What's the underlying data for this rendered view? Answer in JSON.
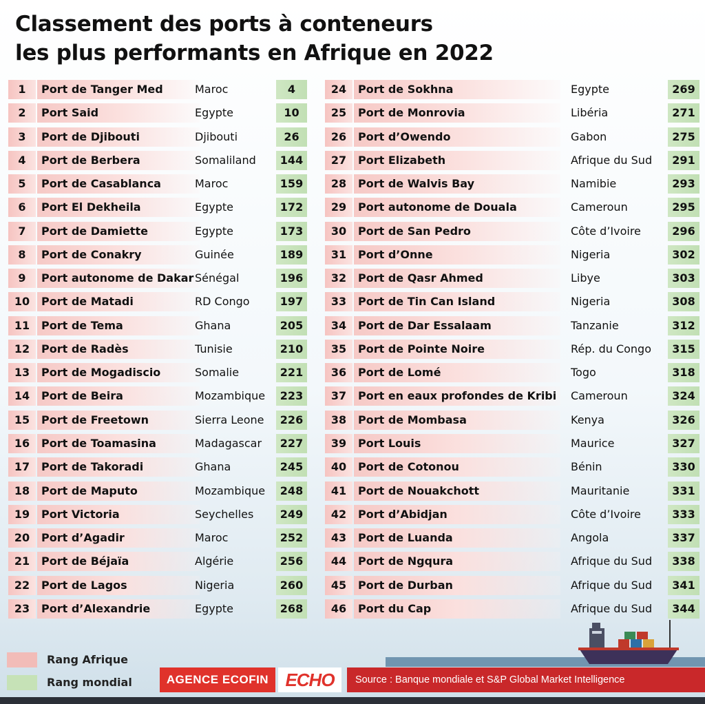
{
  "title": {
    "line1": "Classement des ports à conteneurs",
    "line2": "les plus performants en Afrique en 2022"
  },
  "ports": [
    {
      "rank": "1",
      "name": "Port de Tanger Med",
      "country": "Maroc",
      "world": "4"
    },
    {
      "rank": "2",
      "name": "Port Said",
      "country": "Egypte",
      "world": "10"
    },
    {
      "rank": "3",
      "name": "Port de Djibouti",
      "country": "Djibouti",
      "world": "26"
    },
    {
      "rank": "4",
      "name": "Port de Berbera",
      "country": "Somaliland",
      "world": "144"
    },
    {
      "rank": "5",
      "name": "Port de Casablanca",
      "country": "Maroc",
      "world": "159"
    },
    {
      "rank": "6",
      "name": "Port El Dekheila",
      "country": "Egypte",
      "world": "172"
    },
    {
      "rank": "7",
      "name": "Port de Damiette",
      "country": "Egypte",
      "world": "173"
    },
    {
      "rank": "8",
      "name": "Port de Conakry",
      "country": "Guinée",
      "world": "189"
    },
    {
      "rank": "9",
      "name": "Port autonome de Dakar",
      "country": "Sénégal",
      "world": "196"
    },
    {
      "rank": "10",
      "name": "Port de Matadi",
      "country": "RD Congo",
      "world": "197"
    },
    {
      "rank": "11",
      "name": "Port de Tema",
      "country": "Ghana",
      "world": "205"
    },
    {
      "rank": "12",
      "name": "Port de Radès",
      "country": "Tunisie",
      "world": "210"
    },
    {
      "rank": "13",
      "name": "Port de Mogadiscio",
      "country": "Somalie",
      "world": "221"
    },
    {
      "rank": "14",
      "name": "Port de Beira",
      "country": "Mozambique",
      "world": "223"
    },
    {
      "rank": "15",
      "name": "Port de Freetown",
      "country": "Sierra Leone",
      "world": "226"
    },
    {
      "rank": "16",
      "name": "Port de Toamasina",
      "country": "Madagascar",
      "world": "227"
    },
    {
      "rank": "17",
      "name": "Port de Takoradi",
      "country": "Ghana",
      "world": "245"
    },
    {
      "rank": "18",
      "name": "Port de Maputo",
      "country": "Mozambique",
      "world": "248"
    },
    {
      "rank": "19",
      "name": "Port Victoria",
      "country": "Seychelles",
      "world": "249"
    },
    {
      "rank": "20",
      "name": "Port d’Agadir",
      "country": "Maroc",
      "world": "252"
    },
    {
      "rank": "21",
      "name": "Port de Béjaïa",
      "country": "Algérie",
      "world": "256"
    },
    {
      "rank": "22",
      "name": "Port de Lagos",
      "country": "Nigeria",
      "world": "260"
    },
    {
      "rank": "23",
      "name": "Port d’Alexandrie",
      "country": "Egypte",
      "world": "268"
    },
    {
      "rank": "24",
      "name": "Port de Sokhna",
      "country": "Egypte",
      "world": "269"
    },
    {
      "rank": "25",
      "name": "Port de Monrovia",
      "country": "Libéria",
      "world": "271"
    },
    {
      "rank": "26",
      "name": "Port d’Owendo",
      "country": "Gabon",
      "world": "275"
    },
    {
      "rank": "27",
      "name": "Port Elizabeth",
      "country": "Afrique du Sud",
      "world": "291"
    },
    {
      "rank": "28",
      "name": "Port de Walvis Bay",
      "country": "Namibie",
      "world": "293"
    },
    {
      "rank": "29",
      "name": "Port autonome de Douala",
      "country": "Cameroun",
      "world": "295"
    },
    {
      "rank": "30",
      "name": "Port de San Pedro",
      "country": "Côte d’Ivoire",
      "world": "296"
    },
    {
      "rank": "31",
      "name": "Port d’Onne",
      "country": "Nigeria",
      "world": "302"
    },
    {
      "rank": "32",
      "name": "Port de Qasr Ahmed",
      "country": "Libye",
      "world": "303"
    },
    {
      "rank": "33",
      "name": "Port de Tin Can Island",
      "country": "Nigeria",
      "world": "308"
    },
    {
      "rank": "34",
      "name": "Port de Dar Essalaam",
      "country": "Tanzanie",
      "world": "312"
    },
    {
      "rank": "35",
      "name": "Port de Pointe Noire",
      "country": "Rép. du Congo",
      "world": "315"
    },
    {
      "rank": "36",
      "name": "Port de Lomé",
      "country": "Togo",
      "world": "318"
    },
    {
      "rank": "37",
      "name": "Port en eaux profondes de Kribi",
      "country": "Cameroun",
      "world": "324"
    },
    {
      "rank": "38",
      "name": "Port de Mombasa",
      "country": "Kenya",
      "world": "326"
    },
    {
      "rank": "39",
      "name": "Port Louis",
      "country": "Maurice",
      "world": "327"
    },
    {
      "rank": "40",
      "name": "Port de Cotonou",
      "country": "Bénin",
      "world": "330"
    },
    {
      "rank": "41",
      "name": "Port de Nouakchott",
      "country": "Mauritanie",
      "world": "331"
    },
    {
      "rank": "42",
      "name": "Port d’Abidjan",
      "country": "Côte d’Ivoire",
      "world": "333"
    },
    {
      "rank": "43",
      "name": "Port de Luanda",
      "country": "Angola",
      "world": "337"
    },
    {
      "rank": "44",
      "name": "Port de Ngqura",
      "country": "Afrique du Sud",
      "world": "338"
    },
    {
      "rank": "45",
      "name": "Port de Durban",
      "country": "Afrique du Sud",
      "world": "341"
    },
    {
      "rank": "46",
      "name": "Port du Cap",
      "country": "Afrique du Sud",
      "world": "344"
    }
  ],
  "legend": {
    "rank_afrique": "Rang Afrique",
    "rank_mondial": "Rang mondial",
    "rank_afrique_color": "#f2bcb8",
    "rank_mondial_color": "#c6e2b7"
  },
  "footer": {
    "brand_ecofin": "AGENCE ECOFIN",
    "brand_echo": "ECHO",
    "source": "Source : Banque mondiale et S&P Global Market Intelligence",
    "accent_color": "#e0322b",
    "ship_icon": "cargo-ship-icon"
  }
}
